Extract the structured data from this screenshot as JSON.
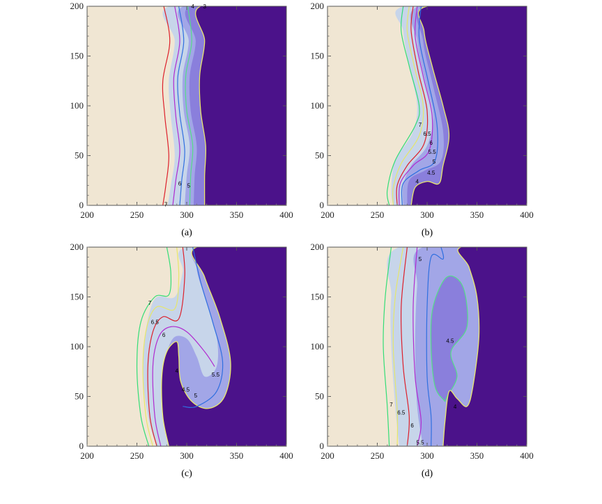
{
  "colors": {
    "background": "#f0e6d3",
    "band_4": "#4b128a",
    "band_4_4_5": "#8a7fdc",
    "band_4_5_5": "#a2a6e7",
    "band_5_7": "#c7d5ea",
    "line_4": "#eeee66",
    "line_4_5": "#55dd88",
    "line_5": "#2f6fe0",
    "line_5_5": "#b02ad0",
    "line_6": "#dd1f2a",
    "line_6_5": "#e6e66a",
    "line_7": "#33dd77"
  },
  "chart_data": [
    {
      "type": "contour",
      "caption": "(a)",
      "xlim": [
        200,
        400
      ],
      "ylim": [
        0,
        200
      ],
      "xticks": [
        200,
        250,
        300,
        350,
        400
      ],
      "yticks": [
        0,
        50,
        100,
        150,
        200
      ],
      "contour_labels": [
        {
          "text": "4",
          "x": 306,
          "y": 200
        },
        {
          "text": "3",
          "x": 318,
          "y": 200
        },
        {
          "text": "6",
          "x": 293,
          "y": 22
        },
        {
          "text": "5",
          "x": 302,
          "y": 20
        },
        {
          "text": "7",
          "x": 279,
          "y": 1
        }
      ]
    },
    {
      "type": "contour",
      "caption": "(b)",
      "xlim": [
        200,
        400
      ],
      "ylim": [
        0,
        200
      ],
      "xticks": [
        200,
        250,
        300,
        350,
        400
      ],
      "yticks": [
        0,
        50,
        100,
        150,
        200
      ],
      "contour_labels": [
        {
          "text": "7",
          "x": 293,
          "y": 81
        },
        {
          "text": "6.5",
          "x": 300,
          "y": 72
        },
        {
          "text": "6",
          "x": 304,
          "y": 63
        },
        {
          "text": "5.5",
          "x": 305,
          "y": 54
        },
        {
          "text": "5",
          "x": 307,
          "y": 44
        },
        {
          "text": "4.5",
          "x": 304,
          "y": 33
        },
        {
          "text": "4",
          "x": 290,
          "y": 24
        }
      ]
    },
    {
      "type": "contour",
      "caption": "(c)",
      "xlim": [
        200,
        400
      ],
      "ylim": [
        0,
        200
      ],
      "xticks": [
        200,
        250,
        300,
        350,
        400
      ],
      "yticks": [
        0,
        50,
        100,
        150,
        200
      ],
      "contour_labels": [
        {
          "text": "7",
          "x": 263,
          "y": 144
        },
        {
          "text": "6.5",
          "x": 268,
          "y": 125
        },
        {
          "text": "6",
          "x": 277,
          "y": 112
        },
        {
          "text": "5.5",
          "x": 329,
          "y": 72
        },
        {
          "text": "4",
          "x": 290,
          "y": 76
        },
        {
          "text": "4.5",
          "x": 299,
          "y": 57
        },
        {
          "text": "5",
          "x": 309,
          "y": 51
        }
      ]
    },
    {
      "type": "contour",
      "caption": "(d)",
      "xlim": [
        200,
        400
      ],
      "ylim": [
        0,
        200
      ],
      "xticks": [
        200,
        250,
        300,
        350,
        400
      ],
      "yticks": [
        0,
        50,
        100,
        150,
        200
      ],
      "contour_labels": [
        {
          "text": "5",
          "x": 293,
          "y": 188
        },
        {
          "text": "4.5",
          "x": 323,
          "y": 106
        },
        {
          "text": "7",
          "x": 264,
          "y": 42
        },
        {
          "text": "6.5",
          "x": 274,
          "y": 34
        },
        {
          "text": "6",
          "x": 285,
          "y": 21
        },
        {
          "text": "5.5",
          "x": 293,
          "y": 4
        },
        {
          "text": "4",
          "x": 328,
          "y": 40
        }
      ]
    }
  ]
}
